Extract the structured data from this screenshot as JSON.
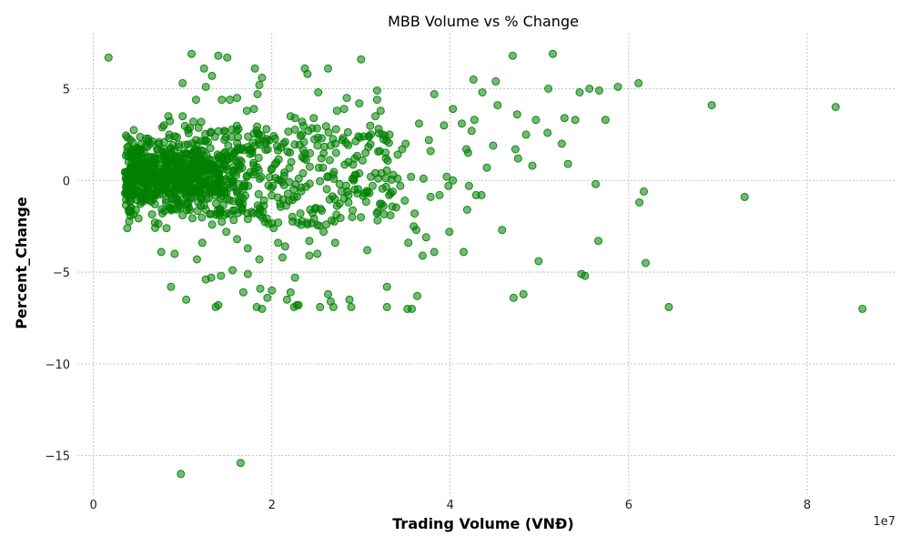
{
  "chart_data": {
    "type": "scatter",
    "title": "MBB Volume vs % Change",
    "xlabel": "Trading Volume (VNĐ)",
    "ylabel": "Percent_Change",
    "x_offset_label": "1e7",
    "xlim": [
      -1800000,
      90000000
    ],
    "ylim": [
      -17.2,
      8.0
    ],
    "x_ticks": [
      0,
      20000000,
      40000000,
      60000000,
      80000000
    ],
    "x_tick_labels": [
      "0",
      "2",
      "4",
      "6",
      "8"
    ],
    "y_ticks": [
      -15,
      -10,
      -5,
      0,
      5
    ],
    "y_tick_labels": [
      "−15",
      "−10",
      "−5",
      "0",
      "5"
    ],
    "grid": true,
    "marker_color": "#008000",
    "series": [
      {
        "points": [
          [
            1700000,
            6.7
          ],
          [
            11000000,
            6.9
          ],
          [
            14000000,
            6.8
          ],
          [
            15000000,
            6.7
          ],
          [
            30000000,
            6.6
          ],
          [
            47000000,
            6.8
          ],
          [
            51500000,
            6.9
          ],
          [
            9800000,
            -16.0
          ],
          [
            16500000,
            -15.4
          ],
          [
            86200000,
            -7.0
          ],
          [
            83200000,
            4.0
          ],
          [
            69300000,
            4.1
          ],
          [
            73000000,
            -0.9
          ],
          [
            64500000,
            -6.9
          ],
          [
            61900000,
            -4.5
          ],
          [
            61100000,
            5.3
          ],
          [
            61700000,
            -0.6
          ],
          [
            61200000,
            -1.2
          ],
          [
            58800000,
            5.1
          ],
          [
            57400000,
            3.3
          ],
          [
            56700000,
            4.9
          ],
          [
            55600000,
            5.0
          ],
          [
            56600000,
            -3.3
          ],
          [
            56300000,
            -0.2
          ],
          [
            55100000,
            -5.2
          ],
          [
            54700000,
            -5.1
          ],
          [
            54500000,
            4.8
          ],
          [
            54000000,
            3.3
          ],
          [
            53200000,
            0.9
          ],
          [
            52800000,
            3.4
          ],
          [
            52500000,
            2.0
          ],
          [
            51000000,
            5.0
          ],
          [
            50900000,
            2.6
          ],
          [
            49600000,
            3.3
          ],
          [
            49900000,
            -4.4
          ],
          [
            49200000,
            0.8
          ],
          [
            48500000,
            2.5
          ],
          [
            48200000,
            -6.2
          ],
          [
            47600000,
            1.2
          ],
          [
            47500000,
            3.6
          ],
          [
            47300000,
            1.7
          ],
          [
            47100000,
            -6.4
          ],
          [
            45800000,
            -2.7
          ],
          [
            45300000,
            4.1
          ],
          [
            45100000,
            5.4
          ],
          [
            44800000,
            1.9
          ],
          [
            44100000,
            0.7
          ],
          [
            43600000,
            4.8
          ],
          [
            43500000,
            -0.8
          ],
          [
            42900000,
            -0.8
          ],
          [
            42700000,
            3.3
          ],
          [
            42600000,
            5.5
          ],
          [
            42400000,
            2.7
          ],
          [
            42100000,
            -0.3
          ],
          [
            42000000,
            1.5
          ],
          [
            41800000,
            1.7
          ],
          [
            41900000,
            -1.6
          ],
          [
            41500000,
            -3.9
          ],
          [
            41300000,
            3.1
          ],
          [
            40300000,
            3.9
          ],
          [
            40300000,
            0.0
          ],
          [
            39900000,
            -2.8
          ],
          [
            39800000,
            -0.3
          ],
          [
            39600000,
            0.2
          ],
          [
            39300000,
            3.0
          ],
          [
            38800000,
            -0.8
          ],
          [
            38200000,
            4.7
          ],
          [
            38200000,
            -3.9
          ],
          [
            37800000,
            -0.9
          ],
          [
            37800000,
            1.6
          ],
          [
            37600000,
            2.2
          ],
          [
            37300000,
            -3.1
          ],
          [
            37000000,
            0.1
          ],
          [
            36900000,
            -4.1
          ],
          [
            36500000,
            3.1
          ],
          [
            36300000,
            -6.3
          ],
          [
            36200000,
            -2.7
          ],
          [
            36000000,
            -1.8
          ],
          [
            35900000,
            -2.5
          ],
          [
            35700000,
            -7.0
          ],
          [
            35600000,
            0.2
          ],
          [
            35300000,
            -3.4
          ],
          [
            35200000,
            -7.0
          ],
          [
            35000000,
            2.0
          ],
          [
            34900000,
            -1.1
          ],
          [
            34600000,
            1.7
          ],
          [
            34400000,
            -0.3
          ],
          [
            34100000,
            0.1
          ],
          [
            33600000,
            0.3
          ],
          [
            33200000,
            2.5
          ],
          [
            32900000,
            -5.8
          ],
          [
            32800000,
            1.2
          ],
          [
            32900000,
            -6.9
          ],
          [
            32500000,
            -1.4
          ],
          [
            32200000,
            3.8
          ],
          [
            32100000,
            1.6
          ],
          [
            31900000,
            -1.7
          ],
          [
            31800000,
            4.4
          ],
          [
            31800000,
            4.9
          ],
          [
            31600000,
            3.5
          ],
          [
            31300000,
            -0.3
          ],
          [
            30900000,
            2.4
          ],
          [
            30700000,
            -3.8
          ],
          [
            30400000,
            -0.7
          ],
          [
            30300000,
            2.4
          ],
          [
            29800000,
            4.2
          ],
          [
            29700000,
            2.4
          ],
          [
            29400000,
            0.3
          ],
          [
            29300000,
            1.2
          ],
          [
            29000000,
            -2.0
          ],
          [
            28900000,
            -6.9
          ],
          [
            28700000,
            -6.5
          ],
          [
            28600000,
            -0.8
          ],
          [
            28400000,
            4.5
          ],
          [
            28100000,
            3.9
          ],
          [
            27900000,
            2.2
          ],
          [
            27600000,
            -0.2
          ],
          [
            27300000,
            3.8
          ],
          [
            27100000,
            -3.4
          ],
          [
            26900000,
            -6.9
          ],
          [
            26600000,
            -6.6
          ],
          [
            26300000,
            -6.2
          ],
          [
            26100000,
            -2.4
          ],
          [
            26300000,
            6.1
          ],
          [
            25800000,
            -2.8
          ],
          [
            25400000,
            -6.9
          ],
          [
            25200000,
            4.8
          ],
          [
            25100000,
            -4.0
          ],
          [
            24900000,
            -1.5
          ],
          [
            24200000,
            -3.3
          ],
          [
            24200000,
            -4.1
          ],
          [
            24000000,
            5.8
          ],
          [
            23700000,
            6.1
          ],
          [
            23400000,
            3.2
          ],
          [
            23200000,
            -1.8
          ],
          [
            23000000,
            -6.8
          ],
          [
            22900000,
            -2.3
          ],
          [
            22800000,
            -6.8
          ],
          [
            22600000,
            -5.3
          ],
          [
            22500000,
            -6.9
          ],
          [
            22100000,
            -6.1
          ],
          [
            21700000,
            -6.5
          ],
          [
            21500000,
            -3.6
          ],
          [
            21200000,
            -4.2
          ],
          [
            20700000,
            -3.4
          ],
          [
            20200000,
            -2.6
          ],
          [
            20000000,
            -6.0
          ],
          [
            19500000,
            -6.4
          ],
          [
            18900000,
            -7.0
          ],
          [
            18700000,
            -5.9
          ],
          [
            18600000,
            -4.3
          ],
          [
            18300000,
            -6.9
          ],
          [
            17300000,
            -5.1
          ],
          [
            17300000,
            -3.7
          ],
          [
            16800000,
            -6.1
          ],
          [
            16100000,
            -3.2
          ],
          [
            15600000,
            -4.9
          ],
          [
            14900000,
            -2.8
          ],
          [
            14300000,
            -5.2
          ],
          [
            14000000,
            -6.8
          ],
          [
            13700000,
            -6.9
          ],
          [
            13200000,
            -5.3
          ],
          [
            12600000,
            -5.4
          ],
          [
            12200000,
            -3.4
          ],
          [
            11600000,
            -4.3
          ],
          [
            10400000,
            -6.5
          ],
          [
            8700000,
            -5.8
          ],
          [
            7600000,
            -3.9
          ],
          [
            9100000,
            -4.0
          ],
          [
            8200000,
            -2.6
          ],
          [
            6900000,
            -2.3
          ],
          [
            3800000,
            -2.6
          ],
          [
            3800000,
            1.8
          ],
          [
            6400000,
            2.0
          ],
          [
            7900000,
            3.0
          ],
          [
            8400000,
            3.5
          ],
          [
            10000000,
            3.5
          ],
          [
            11200000,
            3.2
          ],
          [
            11500000,
            2.2
          ],
          [
            13100000,
            2.6
          ],
          [
            12600000,
            5.1
          ],
          [
            12400000,
            6.1
          ],
          [
            13300000,
            5.7
          ],
          [
            11500000,
            4.4
          ],
          [
            10000000,
            5.3
          ],
          [
            14400000,
            4.4
          ],
          [
            15300000,
            4.4
          ],
          [
            16100000,
            4.5
          ],
          [
            17200000,
            3.8
          ],
          [
            18000000,
            3.9
          ],
          [
            18400000,
            4.7
          ],
          [
            18600000,
            5.2
          ],
          [
            18100000,
            6.1
          ],
          [
            18900000,
            5.6
          ],
          [
            19400000,
            2.8
          ],
          [
            21500000,
            2.1
          ],
          [
            22100000,
            3.5
          ],
          [
            22600000,
            3.4
          ],
          [
            23600000,
            2.1
          ],
          [
            24700000,
            3.4
          ],
          [
            25600000,
            2.3
          ],
          [
            26600000,
            1.9
          ],
          [
            27200000,
            1.5
          ],
          [
            28600000,
            1.0
          ],
          [
            29300000,
            -0.5
          ],
          [
            30500000,
            1.5
          ],
          [
            31100000,
            0.2
          ],
          [
            32300000,
            0.4
          ],
          [
            33300000,
            -1.9
          ],
          [
            34100000,
            1.4
          ]
        ],
        "cluster": {
          "x_center": 9500000,
          "x_spread": 4500000,
          "y_center": 0.2,
          "y_spread": 1.0,
          "count": 700
        },
        "band": {
          "x_range": [
            12000000,
            34000000
          ],
          "y_range": [
            -2.5,
            3.0
          ],
          "count": 260
        }
      }
    ]
  }
}
